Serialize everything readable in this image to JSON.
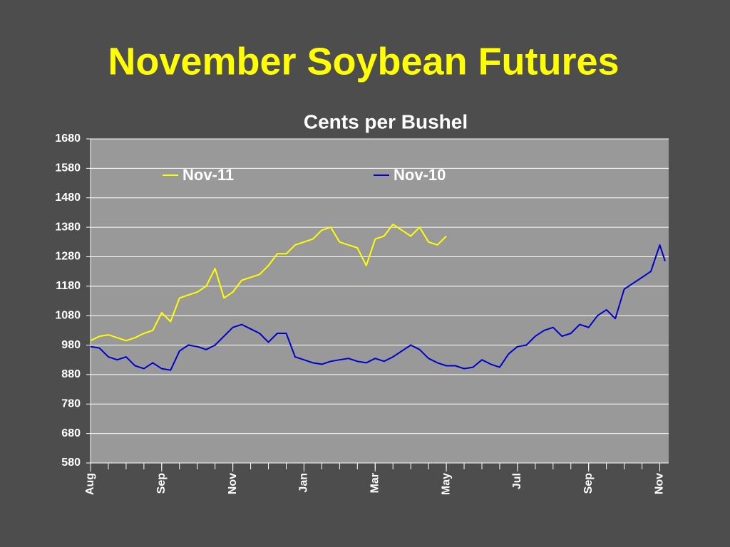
{
  "chart_data": {
    "type": "line",
    "title": "November Soybean Futures",
    "subtitle": "Cents per Bushel",
    "x": [
      0,
      0.5,
      1,
      1.5,
      2,
      2.5,
      3,
      3.5,
      4,
      4.5,
      5,
      5.5,
      6,
      6.5,
      7,
      7.5,
      8,
      8.5,
      9,
      9.5,
      10,
      10.5,
      11,
      11.5,
      12,
      12.5,
      13,
      13.5,
      14,
      14.5,
      15,
      15.5,
      16,
      16.5,
      17,
      17.5,
      18,
      18.5,
      19,
      19.5,
      20,
      20.5,
      21,
      21.5,
      22,
      22.5,
      23,
      23.5,
      24,
      24.5,
      25,
      25.5,
      26,
      26.5,
      27,
      27.5,
      28,
      28.5,
      29,
      29.5,
      30,
      30.5,
      31,
      31.5,
      32,
      32.3
    ],
    "series": [
      {
        "name": "Nov-11",
        "color": "#ffff00",
        "values": [
          995,
          1010,
          1015,
          1005,
          995,
          1005,
          1020,
          1030,
          1090,
          1060,
          1140,
          1150,
          1160,
          1180,
          1240,
          1140,
          1160,
          1200,
          1210,
          1220,
          1250,
          1290,
          1290,
          1320,
          1330,
          1340,
          1370,
          1380,
          1330,
          1320,
          1310,
          1250,
          1340,
          1350,
          1390,
          1370,
          1350,
          1380,
          1330,
          1320,
          1350,
          null,
          null,
          null,
          null,
          null,
          null,
          null,
          null,
          null,
          null,
          null,
          null,
          null,
          null,
          null,
          null,
          null,
          null,
          null,
          null,
          null,
          null,
          null,
          null,
          null
        ]
      },
      {
        "name": "Nov-10",
        "color": "#0000cc",
        "values": [
          975,
          970,
          940,
          930,
          940,
          910,
          900,
          920,
          900,
          895,
          960,
          980,
          975,
          965,
          980,
          1010,
          1040,
          1050,
          1035,
          1020,
          990,
          1020,
          1020,
          940,
          930,
          920,
          915,
          925,
          930,
          935,
          925,
          920,
          935,
          925,
          940,
          960,
          980,
          965,
          935,
          920,
          910,
          910,
          900,
          905,
          930,
          915,
          905,
          950,
          975,
          980,
          1010,
          1030,
          1040,
          1010,
          1020,
          1050,
          1040,
          1080,
          1100,
          1070,
          1170,
          1190,
          1210,
          1230,
          1320,
          1265
        ]
      }
    ],
    "xlim": [
      0,
      32.5
    ],
    "xticks": [
      {
        "value": 0,
        "label": "Aug"
      },
      {
        "value": 4,
        "label": "Sep"
      },
      {
        "value": 8,
        "label": "Nov"
      },
      {
        "value": 12,
        "label": "Jan"
      },
      {
        "value": 16,
        "label": "Mar"
      },
      {
        "value": 20,
        "label": "May"
      },
      {
        "value": 24,
        "label": "Jul"
      },
      {
        "value": 28,
        "label": "Sep"
      },
      {
        "value": 32,
        "label": "Nov"
      }
    ],
    "xminorticks": [
      0,
      1,
      2,
      3,
      4,
      5,
      6,
      7,
      8,
      9,
      10,
      11,
      12,
      13,
      14,
      15,
      16,
      17,
      18,
      19,
      20,
      21,
      22,
      23,
      24,
      25,
      26,
      27,
      28,
      29,
      30,
      31,
      32
    ],
    "ylim": [
      580,
      1680
    ],
    "yticks": [
      580,
      680,
      780,
      880,
      980,
      1080,
      1180,
      1280,
      1380,
      1480,
      1580,
      1680
    ],
    "grid": true,
    "legend": "top"
  }
}
